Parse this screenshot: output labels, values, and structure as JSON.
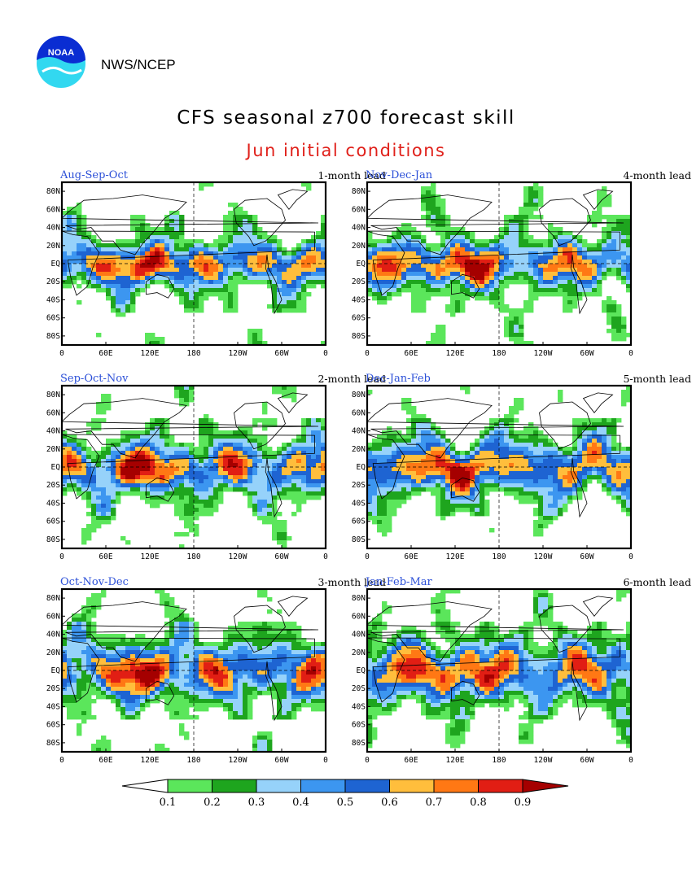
{
  "header": {
    "logo_text": "NOAA",
    "agency": "NWS/NCEP",
    "title": "CFS seasonal z700 forecast skill",
    "subtitle": "Jun initial conditions"
  },
  "axes": {
    "lat_labels": [
      "80N",
      "60N",
      "40N",
      "20N",
      "EQ",
      "20S",
      "40S",
      "60S",
      "80S"
    ],
    "lon_labels": [
      "0",
      "60E",
      "120E",
      "180",
      "120W",
      "60W",
      "0"
    ]
  },
  "panels": [
    {
      "season": "Aug-Sep-Oct",
      "lead": "1-month lead"
    },
    {
      "season": "Nov-Dec-Jan",
      "lead": "4-month lead"
    },
    {
      "season": "Sep-Oct-Nov",
      "lead": "2-month lead"
    },
    {
      "season": "Dec-Jan-Feb",
      "lead": "5-month lead"
    },
    {
      "season": "Oct-Nov-Dec",
      "lead": "3-month lead"
    },
    {
      "season": "Jan-Feb-Mar",
      "lead": "6-month lead"
    }
  ],
  "legend": {
    "labels": [
      "0.1",
      "0.2",
      "0.3",
      "0.4",
      "0.5",
      "0.6",
      "0.7",
      "0.8",
      "0.9"
    ],
    "colors": [
      "#ffffff",
      "#5be65b",
      "#1ea51e",
      "#96d2fa",
      "#3c96f0",
      "#1e64d2",
      "#ffbe3c",
      "#ff7814",
      "#e11e14",
      "#a50000"
    ]
  }
}
